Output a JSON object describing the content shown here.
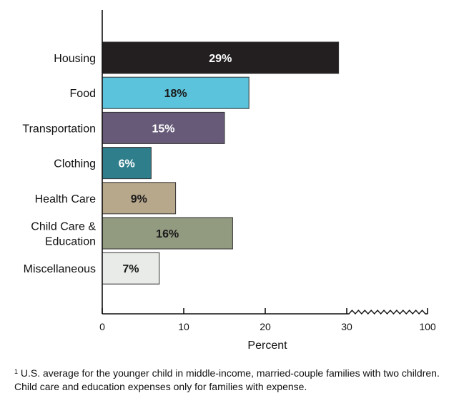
{
  "chart_data": {
    "type": "bar",
    "orientation": "horizontal",
    "categories": [
      "Housing",
      "Food",
      "Transportation",
      "Clothing",
      "Health Care",
      "Child Care &\nEducation",
      "Miscellaneous"
    ],
    "values": [
      29,
      18,
      15,
      6,
      9,
      16,
      7
    ],
    "data_labels": [
      "29%",
      "18%",
      "15%",
      "6%",
      "9%",
      "16%",
      "7%"
    ],
    "colors": [
      "#231f20",
      "#5bc3dc",
      "#675a78",
      "#2f7e8b",
      "#b7a78b",
      "#929a80",
      "#e8ebe8"
    ],
    "label_colors": [
      "#ffffff",
      "#1a1a1a",
      "#ffffff",
      "#ffffff",
      "#1a1a1a",
      "#1a1a1a",
      "#1a1a1a"
    ],
    "xlabel": "Percent",
    "ylabel": "",
    "title": "",
    "xticks": [
      0,
      10,
      20,
      30,
      100
    ],
    "xlim": [
      0,
      100
    ],
    "axis_break": [
      30,
      100
    ],
    "grid": false,
    "legend": "none"
  },
  "footnote": {
    "marker": "1",
    "text": "U.S. average for the younger child in middle-income, married-couple families with two children. Child care and education expenses only for families with expense."
  }
}
